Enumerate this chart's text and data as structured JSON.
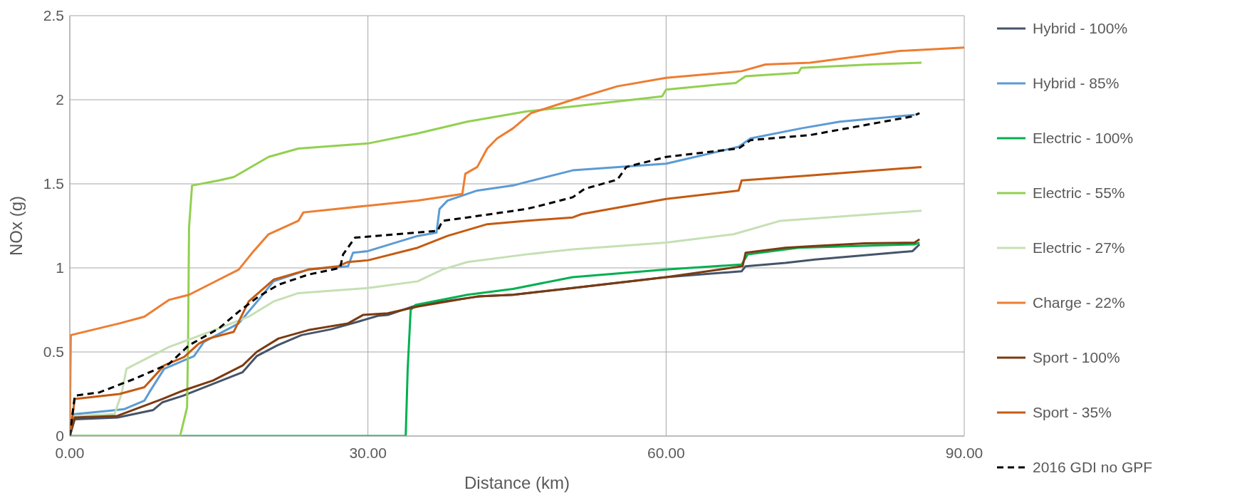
{
  "chart_data": {
    "type": "line",
    "xlabel": "Distance (km)",
    "ylabel": "NOx (g)",
    "xlim": [
      0,
      90
    ],
    "xticks": [
      {
        "value": 0,
        "label": "0.00"
      },
      {
        "value": 30,
        "label": "30.00"
      },
      {
        "value": 60,
        "label": "60.00"
      },
      {
        "value": 90,
        "label": "90.00"
      }
    ],
    "ylim": [
      0,
      2.5
    ],
    "yticks": [
      0,
      0.5,
      1,
      1.5,
      2,
      2.5
    ],
    "grid": true,
    "legend": "right",
    "marker": "none",
    "series": [
      {
        "name": "Hybrid - 100%",
        "color": "#44546a",
        "x": [
          0,
          0.5,
          4.8,
          8.4,
          9.3,
          11.4,
          14.4,
          17.4,
          18.8,
          20.9,
          23.3,
          26.3,
          29,
          31,
          32,
          35,
          41.2,
          44.6,
          50.6,
          60,
          67.6,
          68,
          72,
          75,
          84.8,
          85.5
        ],
        "values": [
          0,
          0.1,
          0.11,
          0.155,
          0.2,
          0.24,
          0.31,
          0.38,
          0.475,
          0.54,
          0.6,
          0.635,
          0.68,
          0.715,
          0.72,
          0.78,
          0.83,
          0.84,
          0.88,
          0.945,
          0.98,
          1.01,
          1.03,
          1.05,
          1.1,
          1.14
        ]
      },
      {
        "name": "Hybrid - 85%",
        "color": "#5b9bd5",
        "x": [
          0,
          0.5,
          4,
          5.5,
          7.5,
          8,
          9.5,
          12.5,
          13.5,
          17,
          19,
          20.5,
          24,
          28,
          28.5,
          30,
          35,
          36.9,
          37.2,
          38,
          41,
          44.6,
          45.9,
          50.6,
          60,
          67.3,
          68.5,
          73.6,
          77.5,
          85
        ],
        "values": [
          0,
          0.13,
          0.15,
          0.16,
          0.21,
          0.26,
          0.4,
          0.475,
          0.56,
          0.67,
          0.81,
          0.92,
          0.99,
          1.01,
          1.09,
          1.1,
          1.19,
          1.21,
          1.35,
          1.4,
          1.46,
          1.49,
          1.51,
          1.58,
          1.62,
          1.72,
          1.77,
          1.83,
          1.87,
          1.91
        ]
      },
      {
        "name": "Electric - 100%",
        "color": "#00b050",
        "x": [
          0,
          33.8,
          34,
          34.3,
          34.8,
          40,
          44.6,
          50.6,
          60,
          67.6,
          68.2,
          73.3,
          85,
          85.5
        ],
        "values": [
          0,
          0,
          0.4,
          0.75,
          0.78,
          0.84,
          0.875,
          0.945,
          0.99,
          1.02,
          1.08,
          1.12,
          1.14,
          1.15
        ]
      },
      {
        "name": "Electric - 55%",
        "color": "#92d050",
        "x": [
          0,
          11.1,
          11.8,
          11.9,
          12,
          12.3,
          15,
          16.5,
          20,
          23,
          30,
          35,
          40,
          45.9,
          50.6,
          59.6,
          60,
          67,
          68,
          73.3,
          73.6,
          80.5,
          85.7
        ],
        "values": [
          0,
          0,
          0.17,
          0.55,
          1.24,
          1.49,
          1.52,
          1.54,
          1.66,
          1.71,
          1.74,
          1.8,
          1.87,
          1.93,
          1.96,
          2.02,
          2.06,
          2.1,
          2.14,
          2.16,
          2.19,
          2.21,
          2.22
        ]
      },
      {
        "name": "Electric - 27%",
        "color": "#c5e0b4",
        "x": [
          0,
          0.5,
          4.5,
          5.2,
          5.7,
          10,
          15,
          18,
          20.5,
          23,
          30,
          35,
          37.5,
          40,
          45.9,
          50.6,
          60,
          66.8,
          71.5,
          85.7
        ],
        "values": [
          0,
          0.12,
          0.13,
          0.25,
          0.4,
          0.53,
          0.64,
          0.71,
          0.8,
          0.85,
          0.88,
          0.92,
          0.99,
          1.035,
          1.08,
          1.11,
          1.15,
          1.2,
          1.28,
          1.34
        ]
      },
      {
        "name": "Charge - 22%",
        "color": "#ed7d31",
        "x": [
          0,
          0.1,
          5,
          7.5,
          10,
          12,
          15,
          17,
          18.5,
          20,
          23,
          23.5,
          30,
          35,
          39.5,
          39.8,
          41,
          42,
          43,
          44.6,
          46.4,
          50.6,
          55.1,
          60,
          67.6,
          70,
          74.5,
          83.5,
          90
        ],
        "values": [
          0,
          0.6,
          0.67,
          0.71,
          0.81,
          0.84,
          0.93,
          0.99,
          1.1,
          1.2,
          1.28,
          1.33,
          1.37,
          1.4,
          1.44,
          1.56,
          1.6,
          1.71,
          1.77,
          1.83,
          1.92,
          2,
          2.08,
          2.13,
          2.17,
          2.21,
          2.22,
          2.29,
          2.31
        ]
      },
      {
        "name": "Sport - 100%",
        "color": "#7b3a10",
        "x": [
          0,
          0.5,
          4.8,
          9.3,
          11.4,
          14.4,
          17.4,
          18.8,
          21,
          24,
          28,
          29.5,
          32,
          35,
          41,
          44.6,
          50.6,
          60,
          67.7,
          68,
          72,
          75,
          80,
          85,
          85.5
        ],
        "values": [
          0,
          0.11,
          0.12,
          0.22,
          0.27,
          0.33,
          0.42,
          0.5,
          0.58,
          0.63,
          0.67,
          0.72,
          0.73,
          0.77,
          0.83,
          0.84,
          0.88,
          0.945,
          1.01,
          1.09,
          1.12,
          1.13,
          1.146,
          1.15,
          1.17
        ]
      },
      {
        "name": "Sport - 35%",
        "color": "#c55a11",
        "x": [
          0,
          0.5,
          5,
          7.5,
          9.5,
          11.5,
          13,
          14,
          16.5,
          18,
          20.5,
          24,
          27,
          28,
          30,
          35,
          38,
          42,
          45.9,
          50.6,
          51.5,
          60,
          67.3,
          67.6,
          74.5,
          85.7
        ],
        "values": [
          0,
          0.22,
          0.25,
          0.29,
          0.42,
          0.47,
          0.55,
          0.58,
          0.62,
          0.8,
          0.93,
          0.99,
          1.01,
          1.035,
          1.045,
          1.12,
          1.19,
          1.26,
          1.28,
          1.3,
          1.32,
          1.41,
          1.46,
          1.52,
          1.55,
          1.6
        ]
      },
      {
        "name": "2016 GDI no GPF",
        "color": "#000000",
        "line_style": "dashed",
        "x": [
          0,
          0.5,
          3,
          6.5,
          10,
          12,
          15,
          17,
          19,
          21,
          24,
          27.2,
          27.5,
          28.7,
          37,
          37.5,
          40,
          45.9,
          47,
          50.6,
          51.8,
          55.1,
          56,
          60,
          67.3,
          68.5,
          74.5,
          84.7,
          85.5
        ],
        "values": [
          0,
          0.24,
          0.26,
          0.34,
          0.43,
          0.54,
          0.64,
          0.74,
          0.83,
          0.9,
          0.96,
          1,
          1.08,
          1.18,
          1.22,
          1.28,
          1.3,
          1.35,
          1.365,
          1.42,
          1.47,
          1.525,
          1.6,
          1.66,
          1.71,
          1.76,
          1.79,
          1.9,
          1.92
        ]
      }
    ]
  }
}
